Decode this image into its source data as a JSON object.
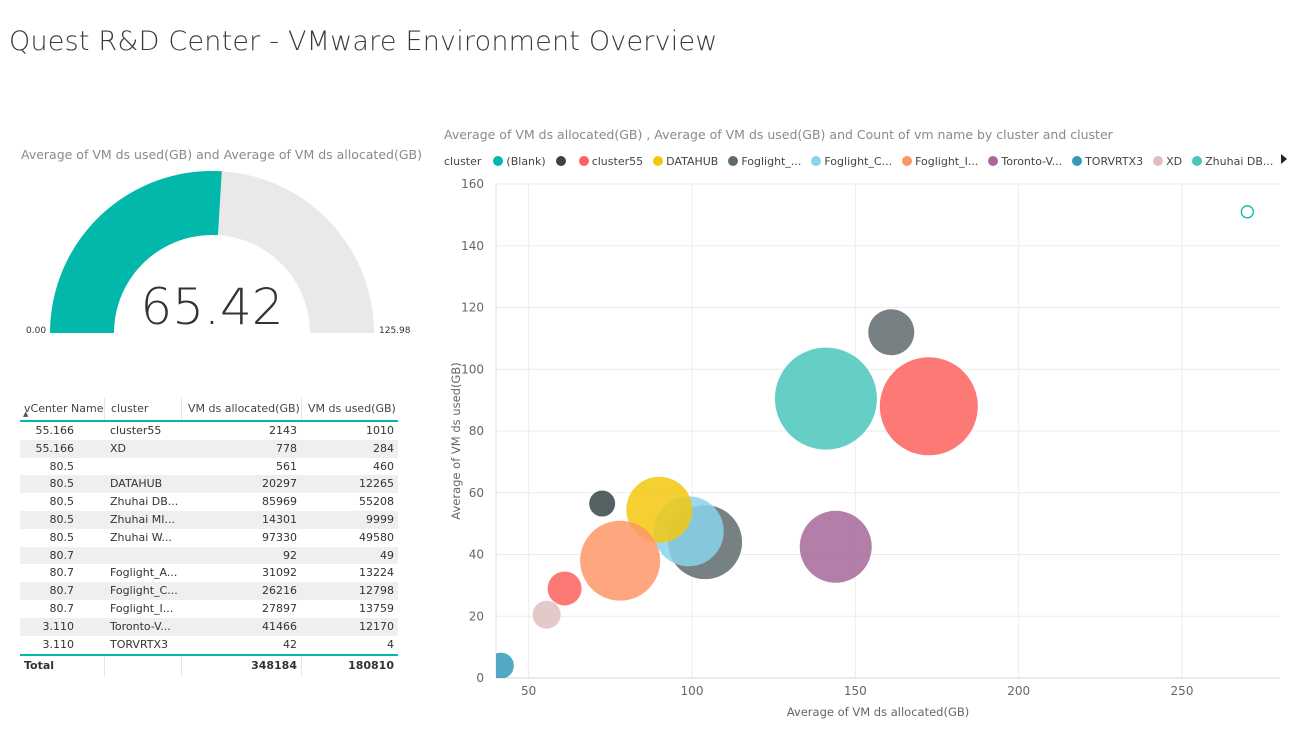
{
  "page": {
    "title": "Quest R&D Center - VMware Environment Overview"
  },
  "gauge": {
    "title": "Average of  VM ds used(GB)  and Average of  VM ds allocated(GB)",
    "value": 65.42,
    "value_label": "65.42",
    "min": 0,
    "max": 125.98,
    "min_label": "0.00",
    "max_label": "125.98",
    "fill_color": "#01b8aa",
    "track_color": "#e9e9e9"
  },
  "table": {
    "columns": [
      "vCenter Name",
      "cluster",
      "VM ds allocated(GB)",
      "VM ds used(GB)"
    ],
    "rows": [
      {
        "vcenter": "55.166",
        "cluster": "cluster55",
        "allocated": "2143",
        "used": "1010"
      },
      {
        "vcenter": "55.166",
        "cluster": "XD",
        "allocated": "778",
        "used": "284"
      },
      {
        "vcenter": "80.5",
        "cluster": "",
        "allocated": "561",
        "used": "460"
      },
      {
        "vcenter": "80.5",
        "cluster": "DATAHUB",
        "allocated": "20297",
        "used": "12265"
      },
      {
        "vcenter": "80.5",
        "cluster": "Zhuhai DB...",
        "allocated": "85969",
        "used": "55208"
      },
      {
        "vcenter": "80.5",
        "cluster": "Zhuhai MI...",
        "allocated": "14301",
        "used": "9999"
      },
      {
        "vcenter": "80.5",
        "cluster": "Zhuhai W...",
        "allocated": "97330",
        "used": "49580"
      },
      {
        "vcenter": "80.7",
        "cluster": "",
        "allocated": "92",
        "used": "49"
      },
      {
        "vcenter": "80.7",
        "cluster": "Foglight_A...",
        "allocated": "31092",
        "used": "13224"
      },
      {
        "vcenter": "80.7",
        "cluster": "Foglight_C...",
        "allocated": "26216",
        "used": "12798"
      },
      {
        "vcenter": "80.7",
        "cluster": "Foglight_I...",
        "allocated": "27897",
        "used": "13759"
      },
      {
        "vcenter": "3.110",
        "cluster": "Toronto-V...",
        "allocated": "41466",
        "used": "12170"
      },
      {
        "vcenter": "3.110",
        "cluster": "TORVRTX3",
        "allocated": "42",
        "used": "4"
      }
    ],
    "total": {
      "label": "Total",
      "allocated": "348184",
      "used": "180810"
    }
  },
  "chart_data": {
    "type": "scatter",
    "title": "Average of  VM ds allocated(GB) , Average of  VM ds used(GB)  and Count of  vm name  by cluster and cluster",
    "xlabel": "Average of VM ds allocated(GB)",
    "ylabel": "Average of VM ds used(GB)",
    "xlim": [
      40,
      280
    ],
    "ylim": [
      0,
      160
    ],
    "xticks": [
      50,
      100,
      150,
      200,
      250
    ],
    "yticks": [
      0,
      20,
      40,
      60,
      80,
      100,
      120,
      140,
      160
    ],
    "grid": true,
    "legend_title": "cluster",
    "legend": [
      {
        "name": "(Blank)",
        "color": "#01b8aa"
      },
      {
        "name": "",
        "color": "#374649"
      },
      {
        "name": "cluster55",
        "color": "#fd625e"
      },
      {
        "name": "DATAHUB",
        "color": "#f2c80f"
      },
      {
        "name": "Foglight_...",
        "color": "#5f6b6d"
      },
      {
        "name": "Foglight_C...",
        "color": "#8ad4eb"
      },
      {
        "name": "Foglight_I...",
        "color": "#fe9666"
      },
      {
        "name": "Toronto-V...",
        "color": "#a66999"
      },
      {
        "name": "TORVRTX3",
        "color": "#3599b8"
      },
      {
        "name": "XD",
        "color": "#dfbfbf"
      },
      {
        "name": "Zhuhai DB...",
        "color": "#4ac5bb"
      }
    ],
    "points": [
      {
        "x": 270,
        "y": 151,
        "r": 6,
        "color": "#01b8aa",
        "hollow": true
      },
      {
        "x": 72.5,
        "y": 56.5,
        "r": 13,
        "color": "#374649"
      },
      {
        "x": 161,
        "y": 112,
        "r": 23,
        "color": "#5f6b6d"
      },
      {
        "x": 61,
        "y": 29,
        "r": 17,
        "color": "#fd625e"
      },
      {
        "x": 55.5,
        "y": 20.5,
        "r": 14,
        "color": "#dfbfbf"
      },
      {
        "x": 41.5,
        "y": 4,
        "r": 13,
        "color": "#3599b8"
      },
      {
        "x": 104,
        "y": 44,
        "r": 37,
        "color": "#5f6b6d"
      },
      {
        "x": 99,
        "y": 47.5,
        "r": 35,
        "color": "#8ad4eb"
      },
      {
        "x": 90,
        "y": 54.5,
        "r": 33,
        "color": "#f2c80f"
      },
      {
        "x": 78,
        "y": 38,
        "r": 40,
        "color": "#fe9666"
      },
      {
        "x": 144,
        "y": 42.5,
        "r": 36,
        "color": "#a66999"
      },
      {
        "x": 172.5,
        "y": 88,
        "r": 49,
        "color": "#fd625e"
      },
      {
        "x": 141,
        "y": 90.5,
        "r": 51,
        "color": "#4ac5bb"
      }
    ]
  }
}
